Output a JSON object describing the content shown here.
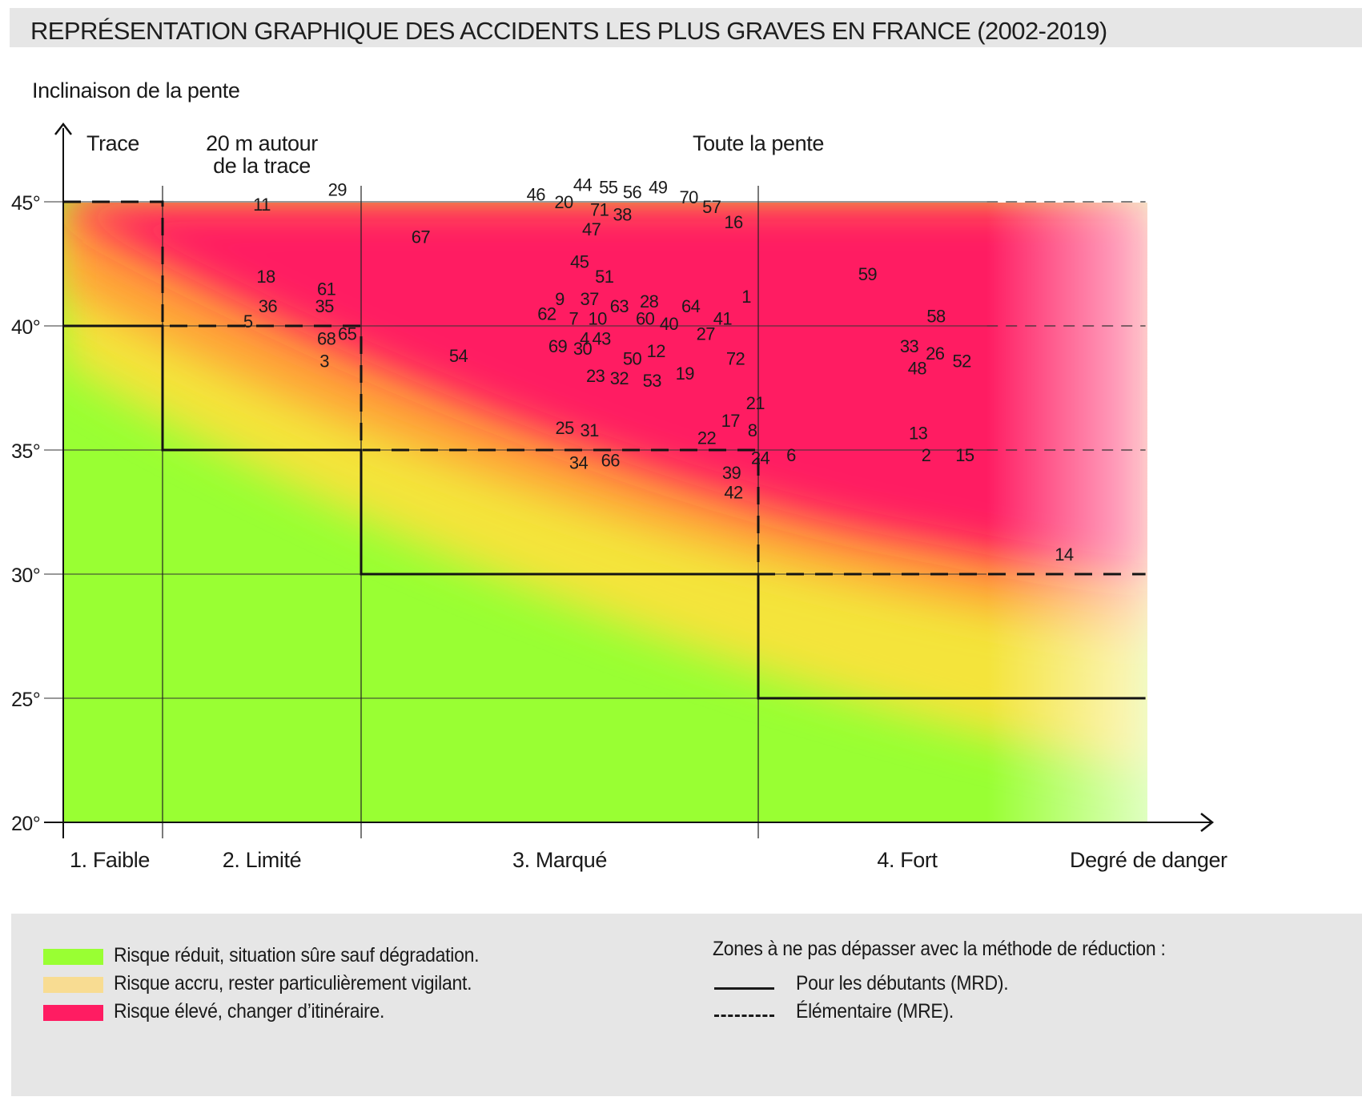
{
  "title": "REPRÉSENTATION GRAPHIQUE DES ACCIDENTS LES PLUS GRAVES EN FRANCE (2002-2019)",
  "chart_data": {
    "type": "scatter",
    "ylabel": "Inclinaison de la pente",
    "xlabel": "Degré de danger",
    "ylim": [
      20,
      45
    ],
    "y_ticks": [
      "20°",
      "25°",
      "30°",
      "35°",
      "40°",
      "45°"
    ],
    "y_tick_values": [
      20,
      25,
      30,
      35,
      40,
      45
    ],
    "x_categories": [
      "1. Faible",
      "2. Limité",
      "3. Marqué",
      "4. Fort"
    ],
    "x_category_bounds": [
      [
        0.0,
        1.0
      ],
      [
        1.0,
        3.0
      ],
      [
        3.0,
        7.0
      ],
      [
        7.0,
        10.0
      ]
    ],
    "x_axis_max": 11.0,
    "zone_headers": [
      {
        "lines": [
          "Trace"
        ],
        "x": 0.5
      },
      {
        "lines": [
          "20 m autour",
          "de la trace"
        ],
        "x": 2.0
      },
      {
        "lines": [
          "Toute la pente"
        ],
        "x": 7.0
      }
    ],
    "risk_zones": [
      {
        "name": "Risque réduit, situation sûre sauf dégradation.",
        "color": "#99ff33"
      },
      {
        "name": "Risque accru, rester particulièrement vigilant.",
        "color": "#f8dc92"
      },
      {
        "name": "Risque élevé, changer d’itinéraire.",
        "color": "#ff1c62"
      }
    ],
    "limits": [
      {
        "name": "Pour les débutants (MRD).",
        "style": "solid",
        "steps": [
          [
            0,
            1,
            40
          ],
          [
            1,
            3,
            35
          ],
          [
            3,
            7,
            30
          ],
          [
            7,
            10.9,
            25
          ]
        ]
      },
      {
        "name": "Élémentaire (MRE).",
        "style": "dashed",
        "steps": [
          [
            0,
            1,
            45
          ],
          [
            1,
            3,
            40
          ],
          [
            3,
            7,
            35
          ],
          [
            7,
            10.9,
            30
          ]
        ]
      }
    ],
    "legend_heading": "Zones à ne pas dépasser avec la méthode de réduction :",
    "grid": "horizontal",
    "points": [
      {
        "label": "1",
        "x": 6.88,
        "y": 41.2
      },
      {
        "label": "2",
        "x": 8.69,
        "y": 34.8
      },
      {
        "label": "3",
        "x": 2.63,
        "y": 38.6
      },
      {
        "label": "4",
        "x": 5.25,
        "y": 39.5
      },
      {
        "label": "5",
        "x": 1.86,
        "y": 40.2
      },
      {
        "label": "6",
        "x": 7.33,
        "y": 34.8
      },
      {
        "label": "7",
        "x": 5.14,
        "y": 40.3
      },
      {
        "label": "8",
        "x": 6.94,
        "y": 35.8
      },
      {
        "label": "9",
        "x": 5.0,
        "y": 41.1
      },
      {
        "label": "10",
        "x": 5.38,
        "y": 40.3
      },
      {
        "label": "11",
        "x": 2.0,
        "y": 44.9
      },
      {
        "label": "12",
        "x": 5.97,
        "y": 39.0
      },
      {
        "label": "13",
        "x": 8.61,
        "y": 35.7
      },
      {
        "label": "14",
        "x": 10.08,
        "y": 30.8
      },
      {
        "label": "15",
        "x": 9.08,
        "y": 34.8
      },
      {
        "label": "16",
        "x": 6.75,
        "y": 44.2
      },
      {
        "label": "17",
        "x": 6.72,
        "y": 36.2
      },
      {
        "label": "18",
        "x": 2.04,
        "y": 42.0
      },
      {
        "label": "19",
        "x": 6.26,
        "y": 38.1
      },
      {
        "label": "20",
        "x": 5.04,
        "y": 45.0
      },
      {
        "label": "21",
        "x": 6.97,
        "y": 36.9
      },
      {
        "label": "22",
        "x": 6.48,
        "y": 35.5
      },
      {
        "label": "23",
        "x": 5.36,
        "y": 38.0
      },
      {
        "label": "24",
        "x": 7.02,
        "y": 34.7
      },
      {
        "label": "25",
        "x": 5.05,
        "y": 35.9
      },
      {
        "label": "26",
        "x": 8.78,
        "y": 38.9
      },
      {
        "label": "27",
        "x": 6.47,
        "y": 39.7
      },
      {
        "label": "28",
        "x": 5.9,
        "y": 41.0
      },
      {
        "label": "29",
        "x": 2.76,
        "y": 45.5
      },
      {
        "label": "30",
        "x": 5.23,
        "y": 39.1
      },
      {
        "label": "31",
        "x": 5.3,
        "y": 35.8
      },
      {
        "label": "32",
        "x": 5.6,
        "y": 37.9
      },
      {
        "label": "33",
        "x": 8.52,
        "y": 39.2
      },
      {
        "label": "34",
        "x": 5.19,
        "y": 34.5
      },
      {
        "label": "35",
        "x": 2.63,
        "y": 40.8
      },
      {
        "label": "36",
        "x": 2.06,
        "y": 40.8
      },
      {
        "label": "37",
        "x": 5.3,
        "y": 41.1
      },
      {
        "label": "38",
        "x": 5.63,
        "y": 44.5
      },
      {
        "label": "39",
        "x": 6.73,
        "y": 34.1
      },
      {
        "label": "40",
        "x": 6.1,
        "y": 40.1
      },
      {
        "label": "41",
        "x": 6.64,
        "y": 40.3
      },
      {
        "label": "42",
        "x": 6.75,
        "y": 33.3
      },
      {
        "label": "43",
        "x": 5.42,
        "y": 39.5
      },
      {
        "label": "44",
        "x": 5.23,
        "y": 45.7
      },
      {
        "label": "45",
        "x": 5.2,
        "y": 42.6
      },
      {
        "label": "46",
        "x": 4.76,
        "y": 45.3
      },
      {
        "label": "47",
        "x": 5.32,
        "y": 43.9
      },
      {
        "label": "48",
        "x": 8.6,
        "y": 38.3
      },
      {
        "label": "49",
        "x": 5.99,
        "y": 45.6
      },
      {
        "label": "50",
        "x": 5.73,
        "y": 38.7
      },
      {
        "label": "51",
        "x": 5.45,
        "y": 42.0
      },
      {
        "label": "52",
        "x": 9.05,
        "y": 38.6
      },
      {
        "label": "53",
        "x": 5.93,
        "y": 37.8
      },
      {
        "label": "54",
        "x": 3.98,
        "y": 38.8
      },
      {
        "label": "55",
        "x": 5.49,
        "y": 45.6
      },
      {
        "label": "56",
        "x": 5.73,
        "y": 45.4
      },
      {
        "label": "57",
        "x": 6.53,
        "y": 44.8
      },
      {
        "label": "58",
        "x": 8.79,
        "y": 40.4
      },
      {
        "label": "59",
        "x": 8.1,
        "y": 42.1
      },
      {
        "label": "60",
        "x": 5.86,
        "y": 40.3
      },
      {
        "label": "61",
        "x": 2.65,
        "y": 41.5
      },
      {
        "label": "62",
        "x": 4.87,
        "y": 40.5
      },
      {
        "label": "63",
        "x": 5.6,
        "y": 40.8
      },
      {
        "label": "64",
        "x": 6.32,
        "y": 40.8
      },
      {
        "label": "65",
        "x": 2.86,
        "y": 39.7
      },
      {
        "label": "66",
        "x": 5.51,
        "y": 34.6
      },
      {
        "label": "67",
        "x": 3.6,
        "y": 43.6
      },
      {
        "label": "68",
        "x": 2.65,
        "y": 39.5
      },
      {
        "label": "69",
        "x": 4.98,
        "y": 39.2
      },
      {
        "label": "70",
        "x": 6.3,
        "y": 45.2
      },
      {
        "label": "71",
        "x": 5.4,
        "y": 44.7
      },
      {
        "label": "72",
        "x": 6.77,
        "y": 38.7
      }
    ]
  }
}
